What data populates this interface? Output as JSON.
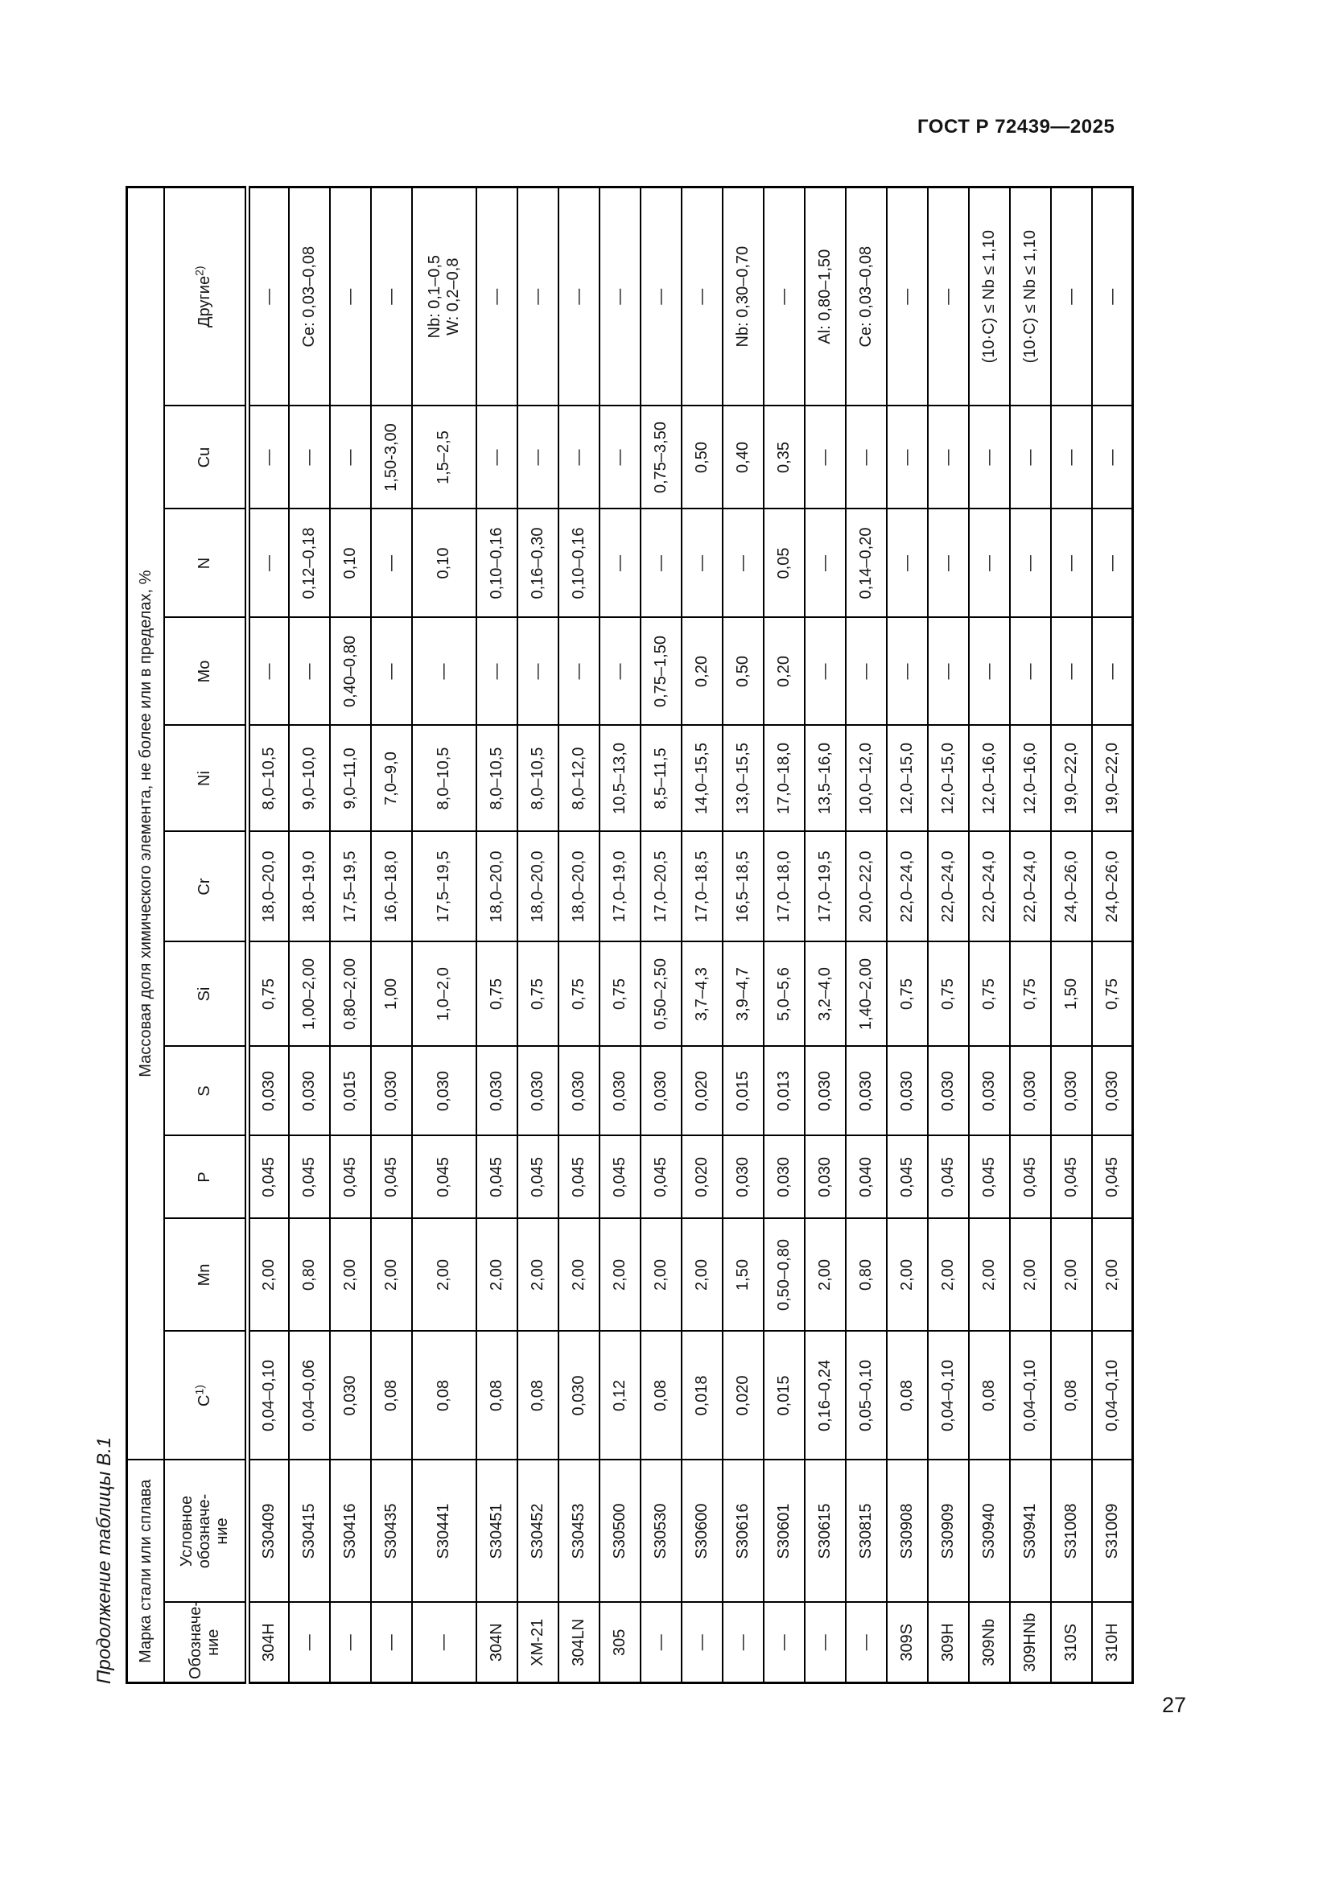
{
  "page": {
    "standard_header": "ГОСТ Р 72439—2025",
    "page_number": "27",
    "table_caption": "Продолжение таблицы В.1"
  },
  "table": {
    "group_headers": {
      "grade": "Марка стали или сплава",
      "composition": "Массовая доля химического элемента, не более или в пределах, %"
    },
    "columns": [
      {
        "key": "designation",
        "label": "Обозначе-\nние"
      },
      {
        "key": "uns",
        "label": "Условное\nобозначе-\nние"
      },
      {
        "key": "c",
        "label": "C",
        "sup": "1)"
      },
      {
        "key": "mn",
        "label": "Mn"
      },
      {
        "key": "p",
        "label": "P"
      },
      {
        "key": "s",
        "label": "S"
      },
      {
        "key": "si",
        "label": "Si"
      },
      {
        "key": "cr",
        "label": "Cr"
      },
      {
        "key": "ni",
        "label": "Ni"
      },
      {
        "key": "mo",
        "label": "Mo"
      },
      {
        "key": "n",
        "label": "N"
      },
      {
        "key": "cu",
        "label": "Cu"
      },
      {
        "key": "others",
        "label": "Другие",
        "sup": "2)"
      }
    ],
    "rows": [
      [
        "304H",
        "S30409",
        "0,04–0,10",
        "2,00",
        "0,045",
        "0,030",
        "0,75",
        "18,0–20,0",
        "8,0–10,5",
        "—",
        "—",
        "—",
        "—"
      ],
      [
        "—",
        "S30415",
        "0,04–0,06",
        "0,80",
        "0,045",
        "0,030",
        "1,00–2,00",
        "18,0–19,0",
        "9,0–10,0",
        "—",
        "0,12–0,18",
        "—",
        "Ce: 0,03–0,08"
      ],
      [
        "—",
        "S30416",
        "0,030",
        "2,00",
        "0,045",
        "0,015",
        "0,80–2,00",
        "17,5–19,5",
        "9,0–11,0",
        "0,40–0,80",
        "0,10",
        "—",
        "—"
      ],
      [
        "—",
        "S30435",
        "0,08",
        "2,00",
        "0,045",
        "0,030",
        "1,00",
        "16,0–18,0",
        "7,0–9,0",
        "—",
        "—",
        "1,50-3,00",
        "—"
      ],
      [
        "—",
        "S30441",
        "0,08",
        "2,00",
        "0,045",
        "0,030",
        "1,0–2,0",
        "17,5–19,5",
        "8,0–10,5",
        "—",
        "0,10",
        "1,5–2,5",
        "Nb: 0,1–0,5\nW: 0,2–0,8"
      ],
      [
        "304N",
        "S30451",
        "0,08",
        "2,00",
        "0,045",
        "0,030",
        "0,75",
        "18,0–20,0",
        "8,0–10,5",
        "—",
        "0,10–0,16",
        "—",
        "—"
      ],
      [
        "XM-21",
        "S30452",
        "0,08",
        "2,00",
        "0,045",
        "0,030",
        "0,75",
        "18,0–20,0",
        "8,0–10,5",
        "—",
        "0,16–0,30",
        "—",
        "—"
      ],
      [
        "304LN",
        "S30453",
        "0,030",
        "2,00",
        "0,045",
        "0,030",
        "0,75",
        "18,0–20,0",
        "8,0–12,0",
        "—",
        "0,10–0,16",
        "—",
        "—"
      ],
      [
        "305",
        "S30500",
        "0,12",
        "2,00",
        "0,045",
        "0,030",
        "0,75",
        "17,0–19,0",
        "10,5–13,0",
        "—",
        "—",
        "—",
        "—"
      ],
      [
        "—",
        "S30530",
        "0,08",
        "2,00",
        "0,045",
        "0,030",
        "0,50–2,50",
        "17,0–20,5",
        "8,5–11,5",
        "0,75–1,50",
        "—",
        "0,75–3,50",
        "—"
      ],
      [
        "—",
        "S30600",
        "0,018",
        "2,00",
        "0,020",
        "0,020",
        "3,7–4,3",
        "17,0–18,5",
        "14,0–15,5",
        "0,20",
        "—",
        "0,50",
        "—"
      ],
      [
        "—",
        "S30616",
        "0,020",
        "1,50",
        "0,030",
        "0,015",
        "3,9–4,7",
        "16,5–18,5",
        "13,0–15,5",
        "0,50",
        "—",
        "0,40",
        "Nb: 0,30–0,70"
      ],
      [
        "—",
        "S30601",
        "0,015",
        "0,50–0,80",
        "0,030",
        "0,013",
        "5,0–5,6",
        "17,0–18,0",
        "17,0–18,0",
        "0,20",
        "0,05",
        "0,35",
        "—"
      ],
      [
        "—",
        "S30615",
        "0,16–0,24",
        "2,00",
        "0,030",
        "0,030",
        "3,2–4,0",
        "17,0–19,5",
        "13,5–16,0",
        "—",
        "—",
        "—",
        "Al: 0,80–1,50"
      ],
      [
        "—",
        "S30815",
        "0,05–0,10",
        "0,80",
        "0,040",
        "0,030",
        "1,40–2,00",
        "20,0–22,0",
        "10,0–12,0",
        "—",
        "0,14–0,20",
        "—",
        "Ce: 0,03–0,08"
      ],
      [
        "309S",
        "S30908",
        "0,08",
        "2,00",
        "0,045",
        "0,030",
        "0,75",
        "22,0–24,0",
        "12,0–15,0",
        "—",
        "—",
        "—",
        "—"
      ],
      [
        "309H",
        "S30909",
        "0,04–0,10",
        "2,00",
        "0,045",
        "0,030",
        "0,75",
        "22,0–24,0",
        "12,0–15,0",
        "—",
        "—",
        "—",
        "—"
      ],
      [
        "309Nb",
        "S30940",
        "0,08",
        "2,00",
        "0,045",
        "0,030",
        "0,75",
        "22,0–24,0",
        "12,0–16,0",
        "—",
        "—",
        "—",
        "(10·C) ≤ Nb ≤ 1,10"
      ],
      [
        "309HNb",
        "S30941",
        "0,04–0,10",
        "2,00",
        "0,045",
        "0,030",
        "0,75",
        "22,0–24,0",
        "12,0–16,0",
        "—",
        "—",
        "—",
        "(10·C) ≤ Nb ≤ 1,10"
      ],
      [
        "310S",
        "S31008",
        "0,08",
        "2,00",
        "0,045",
        "0,030",
        "1,50",
        "24,0–26,0",
        "19,0–22,0",
        "—",
        "—",
        "—",
        "—"
      ],
      [
        "310H",
        "S31009",
        "0,04–0,10",
        "2,00",
        "0,045",
        "0,030",
        "0,75",
        "24,0–26,0",
        "19,0–22,0",
        "—",
        "—",
        "—",
        "—"
      ]
    ]
  }
}
